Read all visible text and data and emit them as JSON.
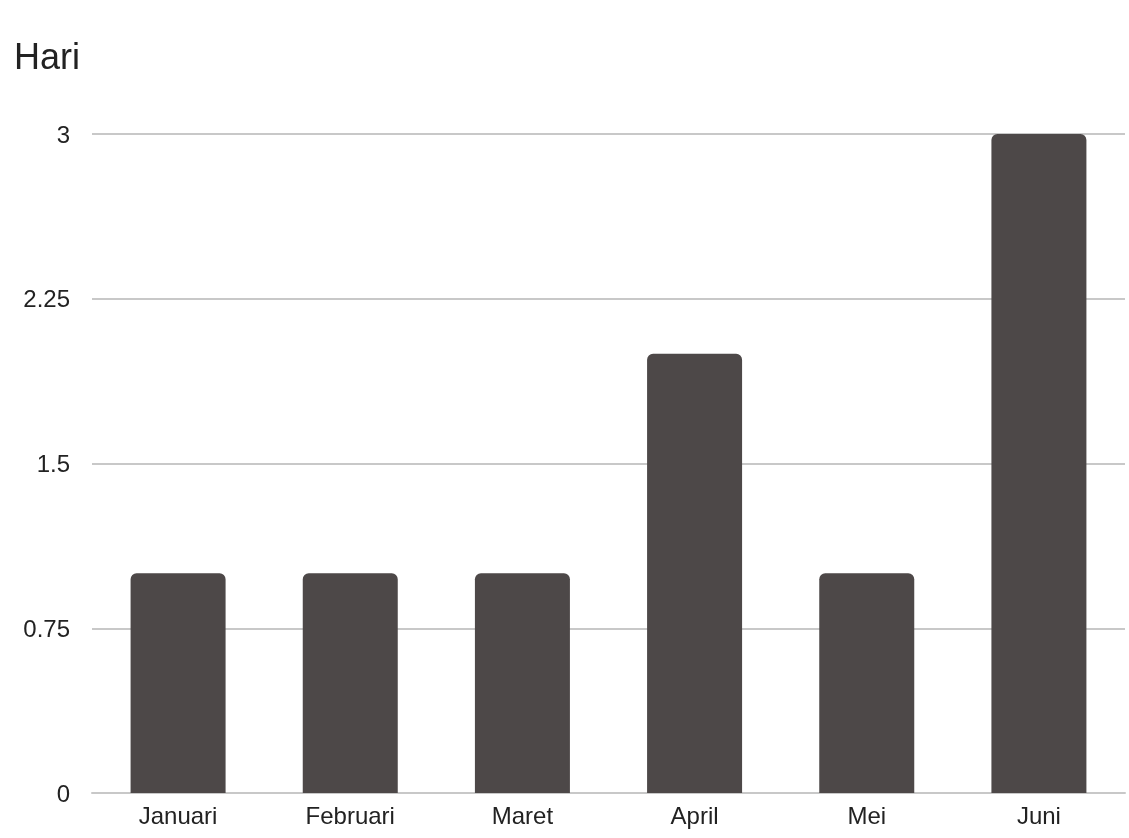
{
  "chart_data": {
    "type": "bar",
    "ylabel": "Hari",
    "categories": [
      "Januari",
      "Februari",
      "Maret",
      "April",
      "Mei",
      "Juni"
    ],
    "values": [
      1,
      1,
      1,
      2,
      1,
      3
    ],
    "color": "#4d4848",
    "ylim": [
      0,
      3
    ],
    "yticks": [
      0,
      0.75,
      1.5,
      2.25,
      3
    ],
    "grid": "y"
  }
}
